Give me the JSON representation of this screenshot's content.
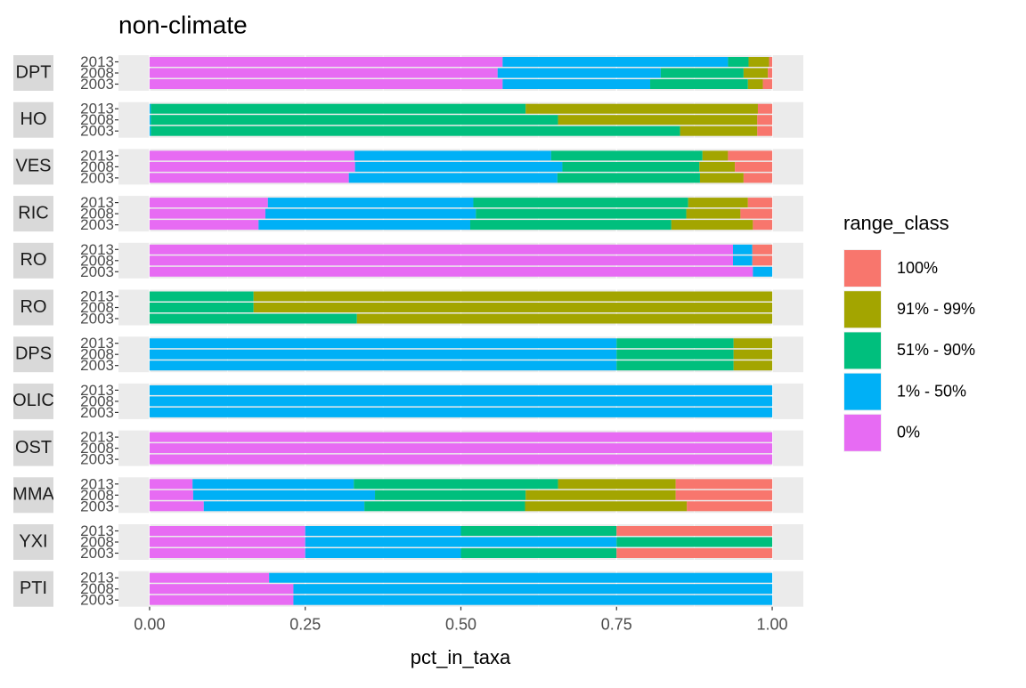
{
  "chart_data": {
    "type": "bar",
    "title": "non-climate",
    "x_label": "pct_in_taxa",
    "legend_title": "range_class",
    "categories": [
      "2013",
      "2008",
      "2003"
    ],
    "series": [
      {
        "name": "0%",
        "color": "#e76bf3"
      },
      {
        "name": "1% - 50%",
        "color": "#00b0f6"
      },
      {
        "name": "51% - 90%",
        "color": "#00bf7d"
      },
      {
        "name": "91% - 99%",
        "color": "#a3a500"
      },
      {
        "name": "100%",
        "color": "#f8766d"
      }
    ],
    "xlim": [
      -0.05,
      1.05
    ],
    "xticks": [
      {
        "value": 0,
        "label": "0.00"
      },
      {
        "value": 0.25,
        "label": "0.25"
      },
      {
        "value": 0.5,
        "label": "0.50"
      },
      {
        "value": 0.75,
        "label": "0.75"
      },
      {
        "value": 1,
        "label": "1.00"
      }
    ],
    "grid": true,
    "facets": [
      {
        "label": "DPT",
        "values": [
          [
            0.567,
            0.559,
            0.567
          ],
          [
            0.362,
            0.262,
            0.237
          ],
          [
            0.033,
            0.133,
            0.157
          ],
          [
            0.033,
            0.039,
            0.024
          ],
          [
            0.005,
            0.007,
            0.015
          ]
        ]
      },
      {
        "label": "HO",
        "values": [
          [
            0,
            0,
            0
          ],
          [
            0.002,
            0.002,
            0.002
          ],
          [
            0.602,
            0.654,
            0.85
          ],
          [
            0.373,
            0.32,
            0.124
          ],
          [
            0.023,
            0.024,
            0.024
          ]
        ]
      },
      {
        "label": "VES",
        "values": [
          [
            0.329,
            0.33,
            0.32
          ],
          [
            0.316,
            0.333,
            0.335
          ],
          [
            0.243,
            0.22,
            0.229
          ],
          [
            0.041,
            0.057,
            0.07
          ],
          [
            0.071,
            0.06,
            0.046
          ]
        ]
      },
      {
        "label": "RIC",
        "values": [
          [
            0.19,
            0.186,
            0.175
          ],
          [
            0.33,
            0.338,
            0.34
          ],
          [
            0.345,
            0.338,
            0.323
          ],
          [
            0.096,
            0.087,
            0.131
          ],
          [
            0.039,
            0.051,
            0.031
          ]
        ]
      },
      {
        "label": "RO",
        "values": [
          [
            0.937,
            0.937,
            0.969
          ],
          [
            0.031,
            0.031,
            0.031
          ],
          [
            0,
            0,
            0
          ],
          [
            0,
            0,
            0
          ],
          [
            0.032,
            0.032,
            0
          ]
        ]
      },
      {
        "label": "RO",
        "values": [
          [
            0,
            0,
            0
          ],
          [
            0,
            0,
            0
          ],
          [
            0.167,
            0.167,
            0.333
          ],
          [
            0.833,
            0.833,
            0.667
          ],
          [
            0,
            0,
            0
          ]
        ]
      },
      {
        "label": "DPS",
        "values": [
          [
            0,
            0,
            0
          ],
          [
            0.75,
            0.75,
            0.75
          ],
          [
            0.188,
            0.188,
            0.188
          ],
          [
            0.062,
            0.062,
            0.062
          ],
          [
            0,
            0,
            0
          ]
        ]
      },
      {
        "label": "OLIC",
        "values": [
          [
            0,
            0,
            0
          ],
          [
            1,
            1,
            1
          ],
          [
            0,
            0,
            0
          ],
          [
            0,
            0,
            0
          ],
          [
            0,
            0,
            0
          ]
        ]
      },
      {
        "label": "OST",
        "values": [
          [
            1,
            1,
            1
          ],
          [
            0,
            0,
            0
          ],
          [
            0,
            0,
            0
          ],
          [
            0,
            0,
            0
          ],
          [
            0,
            0,
            0
          ]
        ]
      },
      {
        "label": "MMA",
        "values": [
          [
            0.069,
            0.07,
            0.087
          ],
          [
            0.259,
            0.292,
            0.258
          ],
          [
            0.328,
            0.242,
            0.258
          ],
          [
            0.189,
            0.241,
            0.26
          ],
          [
            0.155,
            0.155,
            0.137
          ]
        ]
      },
      {
        "label": "YXI",
        "values": [
          [
            0.25,
            0.25,
            0.25
          ],
          [
            0.25,
            0.5,
            0.25
          ],
          [
            0.25,
            0.25,
            0.25
          ],
          [
            0,
            0,
            0
          ],
          [
            0.25,
            0,
            0.25
          ]
        ]
      },
      {
        "label": "PTI",
        "values": [
          [
            0.192,
            0.231,
            0.231
          ],
          [
            0.808,
            0.769,
            0.769
          ],
          [
            0,
            0,
            0
          ],
          [
            0,
            0,
            0
          ],
          [
            0,
            0,
            0
          ]
        ]
      }
    ]
  }
}
